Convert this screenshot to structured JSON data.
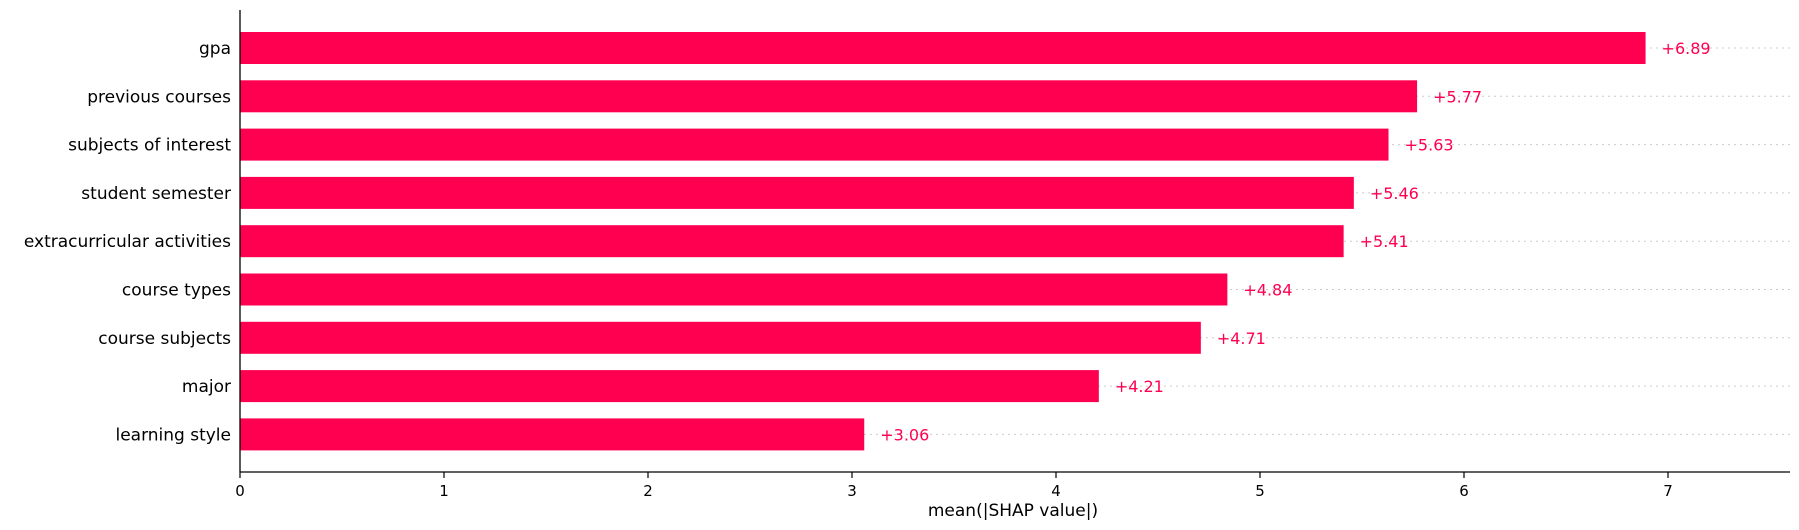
{
  "chart_data": {
    "type": "bar",
    "orientation": "horizontal",
    "categories": [
      "gpa",
      "previous courses",
      "subjects of interest",
      "student semester",
      "extracurricular activities",
      "course types",
      "course subjects",
      "major",
      "learning style"
    ],
    "values": [
      6.89,
      5.77,
      5.63,
      5.46,
      5.41,
      4.84,
      4.71,
      4.21,
      3.06
    ],
    "value_labels": [
      "+6.89",
      "+5.77",
      "+5.63",
      "+5.46",
      "+5.41",
      "+4.84",
      "+4.71",
      "+4.21",
      "+3.06"
    ],
    "xlabel": "mean(|SHAP value|)",
    "xticks": [
      0,
      1,
      2,
      3,
      4,
      5,
      6,
      7
    ],
    "xlim": [
      0,
      7.6
    ],
    "grid": "dotted horizontal guide per row",
    "bar_color": "#ff0051",
    "label_color": "#ff0051",
    "guide_color": "#cccccc"
  }
}
